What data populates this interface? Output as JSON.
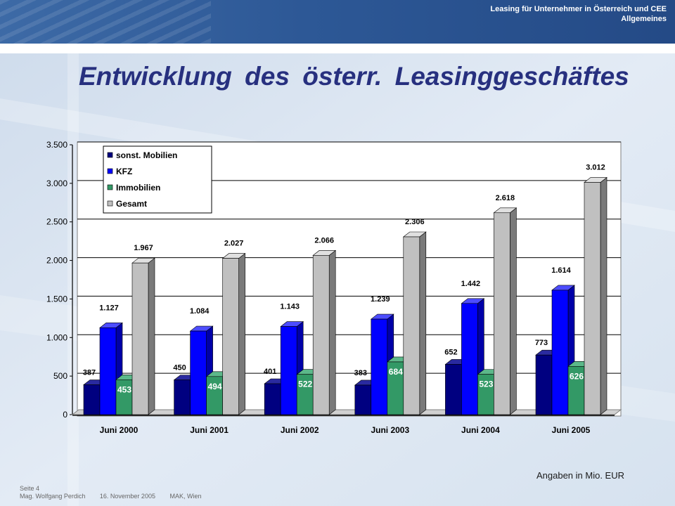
{
  "header": {
    "line1": "Leasing für Unternehmer in Österreich und CEE",
    "line2": "Allgemeines"
  },
  "title": "Entwicklung des österr. Leasinggeschäftes",
  "note": "Angaben in Mio. EUR",
  "footer": {
    "page": "Seite 4",
    "author": "Mag. Wolfgang Perdich",
    "date": "16. November 2005",
    "place": "MAK, Wien"
  },
  "colors": {
    "accent": "#27307f",
    "series": [
      "#000080",
      "#0000ff",
      "#339966",
      "#c0c0c0"
    ]
  },
  "chart_data": {
    "type": "bar",
    "title": "",
    "xlabel": "",
    "ylabel": "",
    "ylim": [
      0,
      3500
    ],
    "yticks": [
      0,
      500,
      1000,
      1500,
      2000,
      2500,
      3000,
      3500
    ],
    "ytick_labels": [
      "0",
      "500",
      "1.000",
      "1.500",
      "2.000",
      "2.500",
      "3.000",
      "3.500"
    ],
    "grid": true,
    "three_d": true,
    "legend_position": "top-left",
    "categories": [
      "Juni 2000",
      "Juni 2001",
      "Juni 2002",
      "Juni 2003",
      "Juni 2004",
      "Juni 2005"
    ],
    "series": [
      {
        "name": "sonst. Mobilien",
        "values": [
          387,
          450,
          401,
          383,
          652,
          773
        ],
        "labels": [
          "387",
          "450",
          "401",
          "383",
          "652",
          "773"
        ]
      },
      {
        "name": "KFZ",
        "values": [
          1127,
          1084,
          1143,
          1239,
          1442,
          1614
        ],
        "labels": [
          "1.127",
          "1.084",
          "1.143",
          "1.239",
          "1.442",
          "1.614"
        ]
      },
      {
        "name": "Immobilien",
        "values": [
          453,
          494,
          522,
          684,
          523,
          626
        ],
        "labels": [
          "453",
          "494",
          "522",
          "684",
          "523",
          "626"
        ]
      },
      {
        "name": "Gesamt",
        "values": [
          1967,
          2027,
          2066,
          2306,
          2618,
          3012
        ],
        "labels": [
          "1.967",
          "2.027",
          "2.066",
          "2.306",
          "2.618",
          "3.012"
        ]
      }
    ]
  }
}
